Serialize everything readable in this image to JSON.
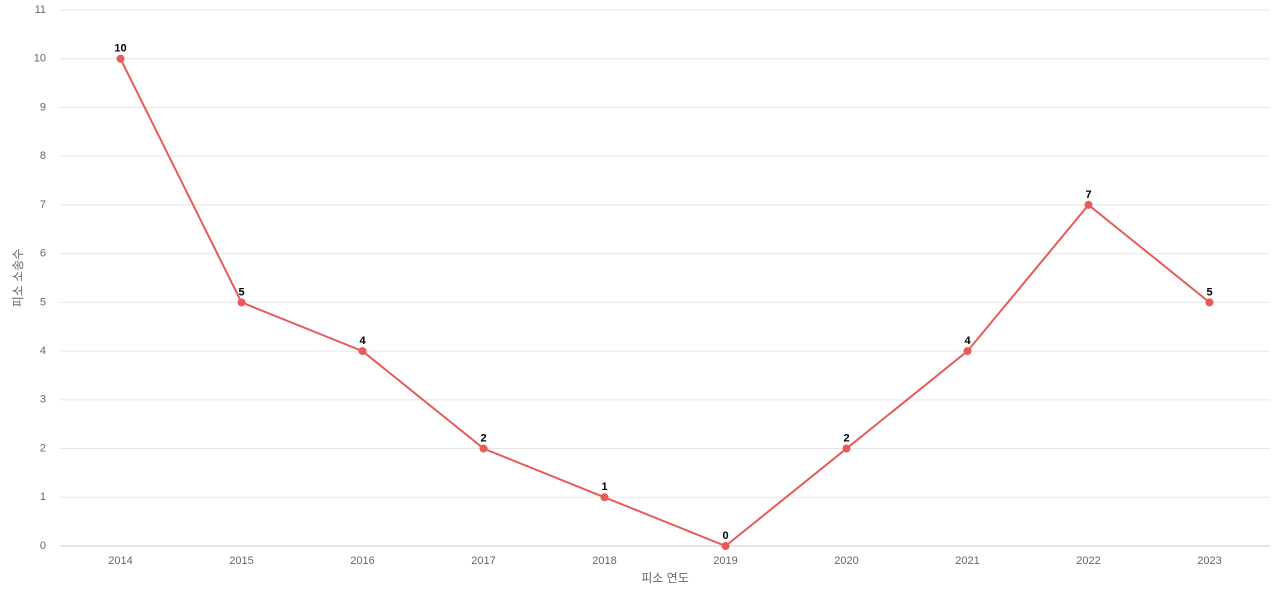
{
  "chart_data": {
    "type": "line",
    "x_label": "피소 연도",
    "y_label": "피소 소송수",
    "categories": [
      "2014",
      "2015",
      "2016",
      "2017",
      "2018",
      "2019",
      "2020",
      "2021",
      "2022",
      "2023"
    ],
    "series": [
      {
        "name": "피소 소송수",
        "color": "#e85a5a",
        "values": [
          10,
          5,
          4,
          2,
          1,
          0,
          2,
          4,
          7,
          5
        ]
      }
    ],
    "ylim": [
      0,
      11
    ],
    "yticks": [
      0,
      1,
      2,
      3,
      4,
      5,
      6,
      7,
      8,
      9,
      10,
      11
    ],
    "grid": true
  }
}
